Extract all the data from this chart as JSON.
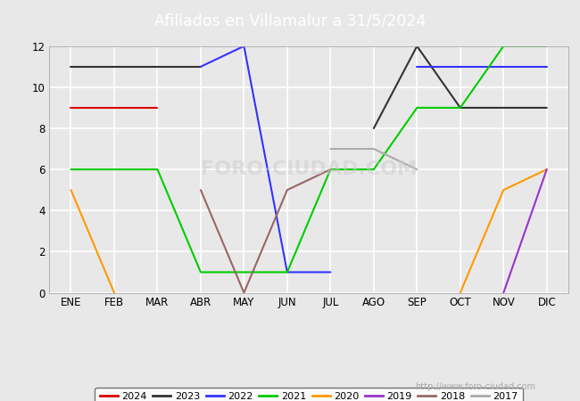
{
  "title": "Afiliados en Villamalur a 31/5/2024",
  "title_bg_color": "#5b8dd9",
  "title_text_color": "white",
  "ylim": [
    0,
    12
  ],
  "yticks": [
    0,
    2,
    4,
    6,
    8,
    10,
    12
  ],
  "months": [
    "ENE",
    "FEB",
    "MAR",
    "ABR",
    "MAY",
    "JUN",
    "JUL",
    "AGO",
    "SEP",
    "OCT",
    "NOV",
    "DIC"
  ],
  "series": [
    {
      "label": "2024",
      "color": "#dd0000",
      "data": [
        9,
        9,
        9,
        null,
        null,
        null,
        null,
        null,
        null,
        null,
        null,
        null
      ]
    },
    {
      "label": "2023",
      "color": "#333333",
      "data": [
        11,
        11,
        11,
        11,
        null,
        null,
        null,
        8,
        12,
        9,
        9,
        9
      ]
    },
    {
      "label": "2022",
      "color": "#3333ff",
      "data": [
        null,
        null,
        null,
        11,
        12,
        1,
        1,
        null,
        11,
        11,
        11,
        11
      ]
    },
    {
      "label": "2021",
      "color": "#00cc00",
      "data": [
        6,
        6,
        6,
        1,
        1,
        1,
        6,
        6,
        9,
        9,
        12,
        12
      ]
    },
    {
      "label": "2020",
      "color": "#ff9900",
      "data": [
        5,
        0,
        null,
        null,
        null,
        null,
        null,
        null,
        null,
        0,
        5,
        6
      ]
    },
    {
      "label": "2019",
      "color": "#9933cc",
      "data": [
        null,
        null,
        null,
        null,
        null,
        null,
        null,
        null,
        null,
        null,
        0,
        6
      ]
    },
    {
      "label": "2018",
      "color": "#996666",
      "data": [
        null,
        null,
        null,
        5,
        0,
        5,
        6,
        null,
        null,
        null,
        null,
        null
      ]
    },
    {
      "label": "2017",
      "color": "#aaaaaa",
      "data": [
        null,
        null,
        null,
        null,
        null,
        null,
        7,
        7,
        6,
        null,
        null,
        null
      ]
    }
  ],
  "plot_bg_color": "#e8e8e8",
  "grid_color": "white",
  "footer_url": "http://www.foro-ciudad.com",
  "footer_color": "#aaaaaa"
}
